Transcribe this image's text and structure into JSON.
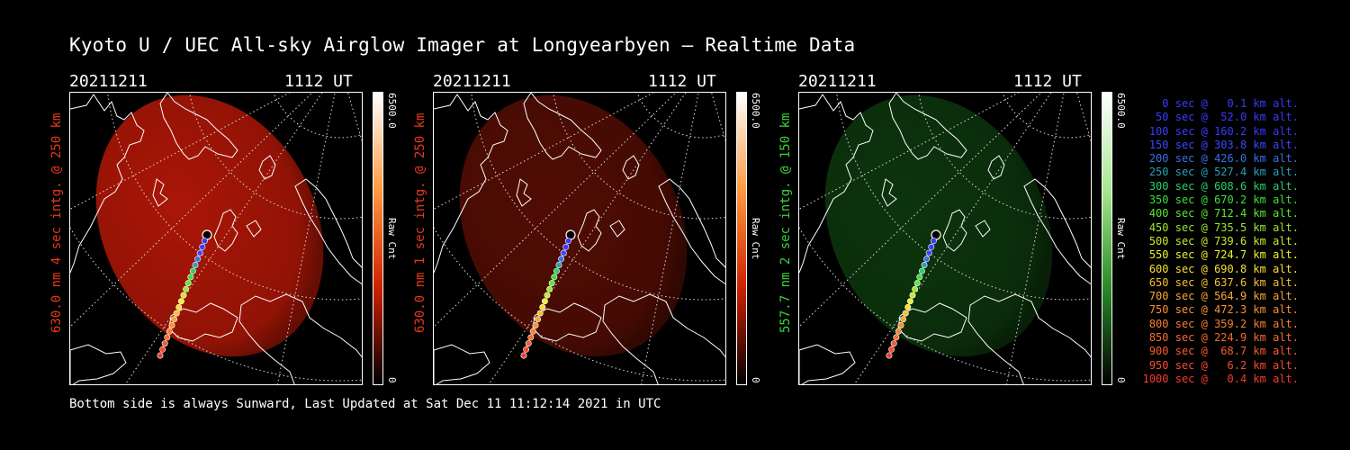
{
  "header": {
    "title": "Kyoto U / UEC All-sky Airglow Imager at Longyearbyen — Realtime Data"
  },
  "panels": [
    {
      "date": "20211211",
      "time": "1112 UT",
      "ylabel": "630.0 nm 4 sec intg. @ 250 km",
      "label_color": "#e83a1a",
      "glow_color": "#c81a08",
      "glow_opacity": 0.85,
      "cbar_max": "6500.0",
      "cbar_unit": "Raw Cnt",
      "cbar_min": "0",
      "cbar_colors": [
        "#ffffff",
        "#ff9a40",
        "#d02000",
        "#000000"
      ]
    },
    {
      "date": "20211211",
      "time": "1112 UT",
      "ylabel": "630.0 nm 1 sec intg. @ 250 km",
      "label_color": "#e83a1a",
      "glow_color": "#5a0e04",
      "glow_opacity": 0.9,
      "cbar_max": "6500.0",
      "cbar_unit": "Raw Cnt",
      "cbar_min": "0",
      "cbar_colors": [
        "#ffffff",
        "#ff9a40",
        "#d02000",
        "#000000"
      ]
    },
    {
      "date": "20211211",
      "time": "1112 UT",
      "ylabel": "557.7 nm 2 sec intg. @ 150 km",
      "label_color": "#39d439",
      "glow_color": "#0e3a0e",
      "glow_opacity": 0.9,
      "cbar_max": "6500.0",
      "cbar_unit": "Raw Cnt",
      "cbar_min": "0",
      "cbar_colors": [
        "#ffffff",
        "#a8e890",
        "#2a8a2a",
        "#000000"
      ]
    }
  ],
  "legend": [
    {
      "text": "0 sec @   0.1 km alt.",
      "color": "#3a3aff"
    },
    {
      "text": "50 sec @  52.0 km alt.",
      "color": "#3a3aff"
    },
    {
      "text": "100 sec @ 160.2 km alt.",
      "color": "#3a3aff"
    },
    {
      "text": "150 sec @ 303.8 km alt.",
      "color": "#3a48ff"
    },
    {
      "text": "200 sec @ 426.0 km alt.",
      "color": "#3a70e8"
    },
    {
      "text": "250 sec @ 527.4 km alt.",
      "color": "#2aa0b8"
    },
    {
      "text": "300 sec @ 608.6 km alt.",
      "color": "#2ad06a"
    },
    {
      "text": "350 sec @ 670.2 km alt.",
      "color": "#3ae03a"
    },
    {
      "text": "400 sec @ 712.4 km alt.",
      "color": "#5ae830"
    },
    {
      "text": "450 sec @ 735.5 km alt.",
      "color": "#9ae830"
    },
    {
      "text": "500 sec @ 739.6 km alt.",
      "color": "#c8e830"
    },
    {
      "text": "550 sec @ 724.7 km alt.",
      "color": "#f0f030"
    },
    {
      "text": "600 sec @ 690.8 km alt.",
      "color": "#f8e030"
    },
    {
      "text": "650 sec @ 637.6 km alt.",
      "color": "#f8c030"
    },
    {
      "text": "700 sec @ 564.9 km alt.",
      "color": "#f8a830"
    },
    {
      "text": "750 sec @ 472.3 km alt.",
      "color": "#f89030"
    },
    {
      "text": "800 sec @ 359.2 km alt.",
      "color": "#f88030"
    },
    {
      "text": "850 sec @ 224.9 km alt.",
      "color": "#f86a30"
    },
    {
      "text": "900 sec @  68.7 km alt.",
      "color": "#f85a30"
    },
    {
      "text": "950 sec @   6.2 km alt.",
      "color": "#f84a30"
    },
    {
      "text": "1000 sec @   0.4 km alt.",
      "color": "#f83a30"
    }
  ],
  "footer": {
    "text": "Bottom side is always Sunward, Last Updated at Sat Dec 11 11:12:14 2021 in UTC"
  }
}
